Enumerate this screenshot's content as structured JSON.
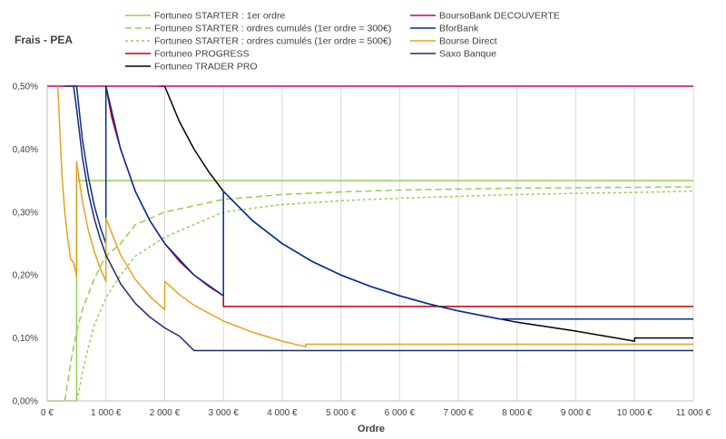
{
  "chart_data": {
    "type": "line",
    "title": "Frais - PEA",
    "xlabel": "Ordre",
    "ylabel": "",
    "xlim": [
      0,
      11000
    ],
    "ylim": [
      0,
      0.005
    ],
    "x_ticks": [
      0,
      1000,
      2000,
      3000,
      4000,
      5000,
      6000,
      7000,
      8000,
      9000,
      10000,
      11000
    ],
    "x_tick_labels": [
      "0 €",
      "1 000 €",
      "2 000 €",
      "3 000 €",
      "4 000 €",
      "5 000 €",
      "6 000 €",
      "7 000 €",
      "8 000 €",
      "9 000 €",
      "10 000 €",
      "11 000 €"
    ],
    "y_ticks": [
      0,
      0.001,
      0.002,
      0.003,
      0.004,
      0.005
    ],
    "y_tick_labels": [
      "0,00%",
      "0,10%",
      "0,20%",
      "0,30%",
      "0,40%",
      "0,50%"
    ],
    "grid": "vertical",
    "legend_position": "top",
    "series": [
      {
        "name": "Fortuneo STARTER : 1er ordre",
        "color": "#92d050",
        "dash": "solid",
        "points": [
          [
            0,
            0
          ],
          [
            500,
            0
          ],
          [
            500,
            0.0035
          ],
          [
            11000,
            0.0035
          ]
        ]
      },
      {
        "name": "Fortuneo STARTER : ordres cumulés (1er ordre = 300€)",
        "color": "#92d050",
        "dash": "long",
        "points": [
          [
            300,
            0
          ],
          [
            350,
            0.0003
          ],
          [
            400,
            0.00062
          ],
          [
            500,
            0.0011
          ],
          [
            600,
            0.00145
          ],
          [
            800,
            0.00194
          ],
          [
            1000,
            0.0023
          ],
          [
            1250,
            0.0025
          ],
          [
            1500,
            0.0028
          ],
          [
            2000,
            0.003
          ],
          [
            2500,
            0.0031
          ],
          [
            3000,
            0.0032
          ],
          [
            4000,
            0.00328
          ],
          [
            5000,
            0.00332
          ],
          [
            6000,
            0.00335
          ],
          [
            8000,
            0.00338
          ],
          [
            11000,
            0.0034
          ]
        ]
      },
      {
        "name": "Fortuneo STARTER : ordres cumulés (1er ordre = 500€)",
        "color": "#92d050",
        "dash": "short",
        "points": [
          [
            500,
            0
          ],
          [
            550,
            0.0002
          ],
          [
            600,
            0.00045
          ],
          [
            700,
            0.00085
          ],
          [
            800,
            0.0012
          ],
          [
            1000,
            0.00164
          ],
          [
            1250,
            0.002
          ],
          [
            1500,
            0.0023
          ],
          [
            2000,
            0.0026
          ],
          [
            2500,
            0.0028
          ],
          [
            3000,
            0.003
          ],
          [
            4000,
            0.00312
          ],
          [
            5000,
            0.00318
          ],
          [
            6000,
            0.00322
          ],
          [
            8000,
            0.00328
          ],
          [
            11000,
            0.00333
          ]
        ]
      },
      {
        "name": "Fortuneo PROGRESS",
        "color": "#c00000",
        "dash": "solid",
        "points": [
          [
            1000,
            0.005
          ],
          [
            1100,
            0.0045
          ],
          [
            1250,
            0.004
          ],
          [
            1500,
            0.00333
          ],
          [
            1750,
            0.00286
          ],
          [
            2000,
            0.0025
          ],
          [
            2250,
            0.00222
          ],
          [
            2500,
            0.002
          ],
          [
            2750,
            0.00182
          ],
          [
            3000,
            0.00167
          ],
          [
            3000,
            0.0015
          ],
          [
            11000,
            0.0015
          ]
        ]
      },
      {
        "name": "Fortuneo TRADER PRO",
        "color": "#000000",
        "dash": "solid",
        "points": [
          [
            1900,
            0.005
          ],
          [
            2000,
            0.005
          ],
          [
            2250,
            0.00444
          ],
          [
            2500,
            0.004
          ],
          [
            2750,
            0.00364
          ],
          [
            3000,
            0.00333
          ],
          [
            3500,
            0.00286
          ],
          [
            4000,
            0.0025
          ],
          [
            4500,
            0.00222
          ],
          [
            5000,
            0.002
          ],
          [
            5500,
            0.00182
          ],
          [
            6000,
            0.00167
          ],
          [
            6500,
            0.00154
          ],
          [
            7000,
            0.00143
          ],
          [
            8000,
            0.00125
          ],
          [
            9000,
            0.00111
          ],
          [
            10000,
            0.00095
          ],
          [
            10000,
            0.001
          ],
          [
            11000,
            0.001
          ]
        ]
      },
      {
        "name": "BoursoBank DECOUVERTE",
        "color": "#c0007a",
        "dash": "solid",
        "points": [
          [
            0,
            0.005
          ],
          [
            11000,
            0.005
          ]
        ]
      },
      {
        "name": "BforBank",
        "color": "#002d9c",
        "dash": "solid",
        "points": [
          [
            450,
            0.005
          ],
          [
            500,
            0.005
          ],
          [
            600,
            0.00415
          ],
          [
            700,
            0.00356
          ],
          [
            800,
            0.00311
          ],
          [
            900,
            0.00277
          ],
          [
            1000,
            0.0025
          ],
          [
            1000,
            0.005
          ],
          [
            1250,
            0.004
          ],
          [
            1500,
            0.00333
          ],
          [
            1750,
            0.00286
          ],
          [
            2000,
            0.0025
          ],
          [
            2500,
            0.002
          ],
          [
            3000,
            0.00167
          ],
          [
            3000,
            0.00333
          ],
          [
            3500,
            0.00286
          ],
          [
            4000,
            0.0025
          ],
          [
            4500,
            0.00222
          ],
          [
            5000,
            0.002
          ],
          [
            5500,
            0.00182
          ],
          [
            6000,
            0.00167
          ],
          [
            6500,
            0.00154
          ],
          [
            7000,
            0.00143
          ],
          [
            7700,
            0.0013
          ],
          [
            11000,
            0.0013
          ]
        ]
      },
      {
        "name": "Bourse Direct",
        "color": "#e8a020",
        "dash": "solid",
        "points": [
          [
            180,
            0.005
          ],
          [
            250,
            0.0036
          ],
          [
            300,
            0.003
          ],
          [
            350,
            0.00257
          ],
          [
            400,
            0.00225
          ],
          [
            450,
            0.0022
          ],
          [
            500,
            0.00198
          ],
          [
            500,
            0.0038
          ],
          [
            600,
            0.00317
          ],
          [
            700,
            0.00271
          ],
          [
            800,
            0.00238
          ],
          [
            900,
            0.00211
          ],
          [
            1000,
            0.0019
          ],
          [
            1000,
            0.0029
          ],
          [
            1250,
            0.00232
          ],
          [
            1500,
            0.00193
          ],
          [
            1750,
            0.00166
          ],
          [
            2000,
            0.00145
          ],
          [
            2000,
            0.0019
          ],
          [
            2250,
            0.00169
          ],
          [
            2500,
            0.00152
          ],
          [
            3000,
            0.00127
          ],
          [
            3500,
            0.00109
          ],
          [
            4000,
            0.00095
          ],
          [
            4400,
            0.00086
          ],
          [
            4400,
            0.0009
          ],
          [
            11000,
            0.0009
          ]
        ]
      },
      {
        "name": "Saxo Banque",
        "color": "#1f2a6b",
        "dash": "solid",
        "points": [
          [
            300,
            0.005
          ],
          [
            450,
            0.005
          ],
          [
            500,
            0.00464
          ],
          [
            600,
            0.00387
          ],
          [
            700,
            0.00331
          ],
          [
            800,
            0.0029
          ],
          [
            900,
            0.00258
          ],
          [
            1000,
            0.00232
          ],
          [
            1250,
            0.00186
          ],
          [
            1500,
            0.00155
          ],
          [
            1750,
            0.00133
          ],
          [
            2000,
            0.00116
          ],
          [
            2250,
            0.00103
          ],
          [
            2500,
            0.0008
          ],
          [
            11000,
            0.0008
          ]
        ]
      }
    ]
  },
  "legend_left": [
    "Fortuneo STARTER : 1er ordre",
    "Fortuneo STARTER : ordres cumulés (1er ordre = 300€)",
    "Fortuneo STARTER : ordres cumulés (1er ordre = 500€)",
    "Fortuneo PROGRESS",
    "Fortuneo TRADER PRO"
  ],
  "legend_right": [
    "BoursoBank DECOUVERTE",
    "BforBank",
    "Bourse Direct",
    "Saxo Banque"
  ]
}
